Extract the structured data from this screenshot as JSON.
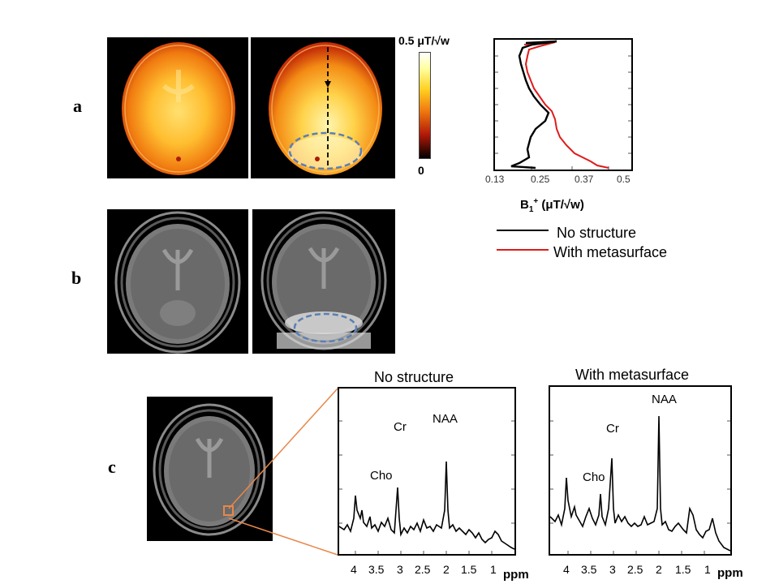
{
  "panels": {
    "a": "a",
    "b": "b",
    "c": "c"
  },
  "colorbar": {
    "max_label": "0.5 μT/√w",
    "min_label": "0"
  },
  "profile_plot": {
    "x_ticks": [
      "0.13",
      "0.25",
      "0.37",
      "0.5"
    ],
    "x_axis_label": "B",
    "x_axis_label_sub": "1",
    "x_axis_label_sup": "+",
    "x_axis_label_unit": " (μT/√w)",
    "colors": {
      "no_structure": "#000000",
      "with_metasurface": "#e11a1a"
    }
  },
  "legend": {
    "items": [
      {
        "label": "No structure",
        "color": "#000000"
      },
      {
        "label": "With metasurface",
        "color": "#e11a1a"
      }
    ]
  },
  "spectra": [
    {
      "title": "No structure",
      "peaks": {
        "cho": "Cho",
        "cr": "Cr",
        "naa": "NAA"
      },
      "ppm_ticks": [
        "4",
        "3.5",
        "3",
        "2.5",
        "2",
        "1.5",
        "1"
      ],
      "ppm_unit": "ppm"
    },
    {
      "title": "With metasurface",
      "peaks": {
        "cho": "Cho",
        "cr": "Cr",
        "naa": "NAA"
      },
      "ppm_ticks": [
        "4",
        "3.5",
        "3",
        "2.5",
        "2",
        "1.5",
        "1"
      ],
      "ppm_unit": "ppm"
    }
  ],
  "colors": {
    "roi_outline": "#e8874a",
    "dashed_ellipse": "#5b7fb5"
  }
}
